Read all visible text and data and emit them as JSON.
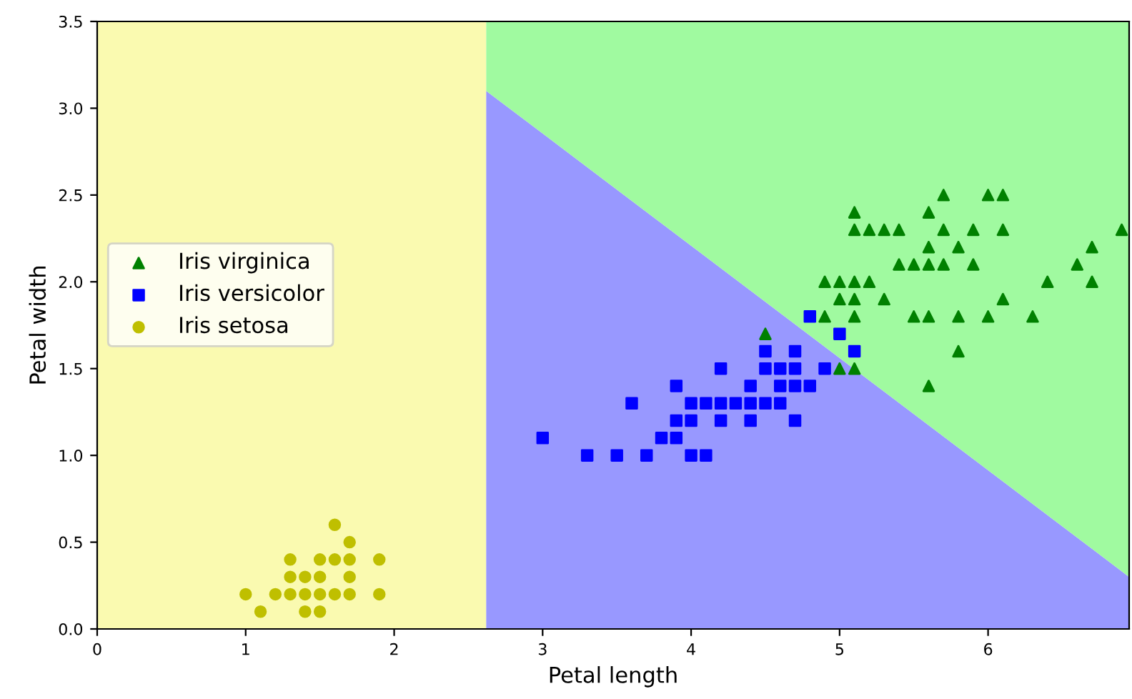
{
  "chart_data": {
    "type": "scatter",
    "xlabel": "Petal length",
    "ylabel": "Petal width",
    "xlim": [
      0,
      6.95
    ],
    "xticks": [
      0,
      1,
      2,
      3,
      4,
      5,
      6
    ],
    "ylim": [
      0,
      3.5
    ],
    "yticks": [
      {
        "value": 0,
        "label": "0.0"
      },
      {
        "value": 0.5,
        "label": "0.5"
      },
      {
        "value": 1,
        "label": "1.0"
      },
      {
        "value": 1.5,
        "label": "1.5"
      },
      {
        "value": 2,
        "label": "2.0"
      },
      {
        "value": 2.5,
        "label": "2.5"
      },
      {
        "value": 3,
        "label": "3.0"
      },
      {
        "value": 3.5,
        "label": "3.5"
      }
    ],
    "grid": false,
    "legend": "left",
    "stacked": true,
    "bands": [
      {
        "axis": "x",
        "from": 0,
        "to": 2.62,
        "label": null,
        "color": "#fafab0"
      }
    ],
    "series": [
      {
        "type": "area",
        "color": "#9898ff",
        "x": [
          2.62,
          6.95
        ],
        "values": [
          3.1,
          0.3
        ]
      },
      {
        "type": "area",
        "color": "#a0faa0",
        "x": [
          2.62,
          6.95
        ],
        "values": [
          0.4,
          3.2
        ]
      },
      {
        "name": "Iris virginica",
        "color": "#008000",
        "marker": "triangle",
        "x": [
          6.0,
          5.1,
          5.9,
          5.6,
          5.8,
          6.6,
          4.5,
          6.3,
          5.8,
          6.1,
          5.1,
          5.3,
          5.5,
          5.0,
          5.1,
          5.3,
          5.5,
          6.7,
          6.9,
          5.0,
          5.7,
          4.9,
          6.7,
          4.9,
          5.7,
          6.0,
          5.6,
          5.8,
          6.1,
          6.4,
          5.6,
          5.1,
          5.6,
          6.1,
          5.6,
          5.4,
          5.1,
          5.9,
          5.7,
          5.2,
          5.0,
          5.2,
          5.4,
          5.1
        ],
        "values": [
          2.5,
          1.9,
          2.1,
          1.8,
          2.2,
          2.1,
          1.7,
          1.8,
          1.8,
          2.5,
          2.0,
          1.9,
          2.1,
          2.0,
          2.4,
          2.3,
          1.8,
          2.2,
          2.3,
          1.5,
          2.3,
          2.0,
          2.0,
          1.8,
          2.1,
          1.8,
          2.1,
          1.6,
          1.9,
          2.0,
          2.2,
          1.5,
          1.4,
          2.3,
          2.4,
          2.1,
          2.3,
          2.3,
          2.5,
          2.3,
          1.9,
          2.0,
          2.3,
          1.8
        ]
      },
      {
        "name": "Iris versicolor",
        "color": "#0000ff",
        "marker": "square",
        "x": [
          4.7,
          4.5,
          4.9,
          4.0,
          4.6,
          4.5,
          4.7,
          3.3,
          4.6,
          3.9,
          3.5,
          4.2,
          4.0,
          3.6,
          4.4,
          4.1,
          3.9,
          4.8,
          4.7,
          4.3,
          4.8,
          5.0,
          3.8,
          3.7,
          3.9,
          5.1,
          4.5,
          4.7,
          4.4,
          4.1,
          4.4,
          4.6,
          4.0,
          4.2,
          4.2,
          3.0
        ],
        "values": [
          1.4,
          1.5,
          1.5,
          1.3,
          1.5,
          1.3,
          1.6,
          1.0,
          1.3,
          1.4,
          1.0,
          1.5,
          1.0,
          1.3,
          1.4,
          1.0,
          1.1,
          1.8,
          1.2,
          1.3,
          1.4,
          1.7,
          1.1,
          1.0,
          1.2,
          1.6,
          1.6,
          1.5,
          1.3,
          1.3,
          1.2,
          1.4,
          1.2,
          1.3,
          1.2,
          1.1
        ]
      },
      {
        "name": "Iris setosa",
        "color": "#bfbf00",
        "marker": "circle",
        "x": [
          1.1,
          1.4,
          1.5,
          1.0,
          1.2,
          1.3,
          1.4,
          1.5,
          1.6,
          1.7,
          1.9,
          1.3,
          1.4,
          1.5,
          1.7,
          1.3,
          1.5,
          1.6,
          1.7,
          1.9,
          1.7,
          1.6
        ],
        "values": [
          0.1,
          0.1,
          0.1,
          0.2,
          0.2,
          0.2,
          0.2,
          0.2,
          0.2,
          0.2,
          0.2,
          0.3,
          0.3,
          0.3,
          0.3,
          0.4,
          0.4,
          0.4,
          0.4,
          0.4,
          0.5,
          0.6
        ]
      }
    ]
  }
}
